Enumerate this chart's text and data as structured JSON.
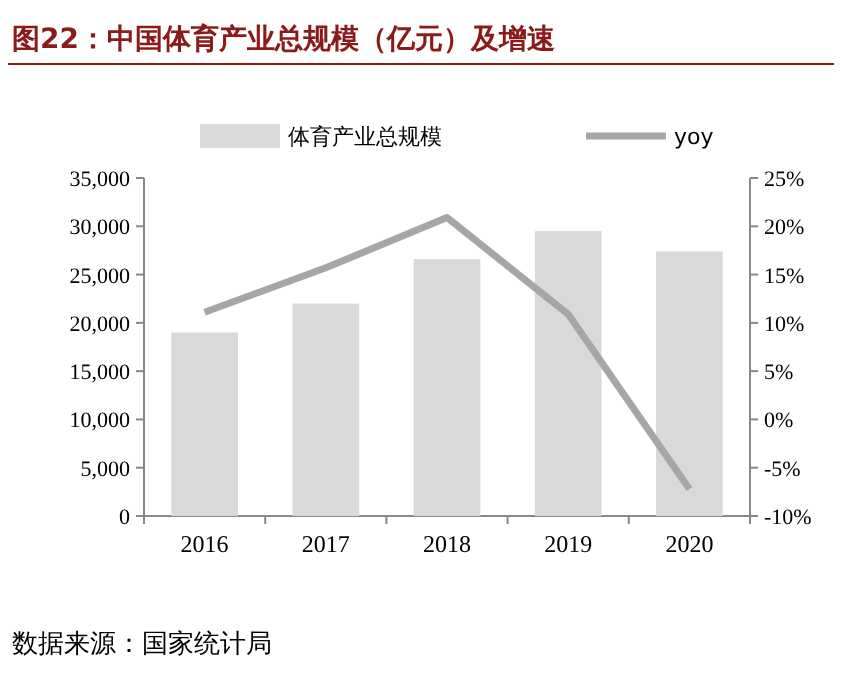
{
  "chart_data": {
    "type": "bar",
    "title": "图22：中国体育产业总规模（亿元）及增速",
    "categories": [
      "2016",
      "2017",
      "2018",
      "2019",
      "2020"
    ],
    "series": [
      {
        "name": "体育产业总规模",
        "color": "#d9d9d9",
        "values": [
          19000,
          22000,
          26600,
          29500,
          27400
        ]
      },
      {
        "name": "yoy",
        "type": "line",
        "axis": "y2",
        "color": "#a6a6a6",
        "values": [
          11.1,
          15.7,
          20.9,
          10.9,
          -7.2
        ]
      }
    ],
    "ylim": [
      0,
      35000
    ],
    "yticks": [
      0,
      {
        "value": 5000,
        "label": "5,000"
      },
      {
        "value": 10000,
        "label": "10,000"
      },
      {
        "value": 15000,
        "label": "15,000"
      },
      {
        "value": 20000,
        "label": "20,000"
      },
      {
        "value": 25000,
        "label": "25,000"
      },
      {
        "value": 30000,
        "label": "30,000"
      },
      {
        "value": 35000,
        "label": "35,000"
      }
    ],
    "y2lim": [
      -10,
      25
    ],
    "y2ticks": [
      {
        "value": -10,
        "label": "-10%"
      },
      {
        "value": -5,
        "label": "-5%"
      },
      {
        "value": 0,
        "label": "0%"
      },
      {
        "value": 5,
        "label": "5%"
      },
      {
        "value": 10,
        "label": "10%"
      },
      {
        "value": 15,
        "label": "15%"
      },
      {
        "value": 20,
        "label": "20%"
      },
      {
        "value": 25,
        "label": "25%"
      }
    ],
    "legend": "top",
    "annotations": [
      "数据来源：国家统计局"
    ]
  }
}
